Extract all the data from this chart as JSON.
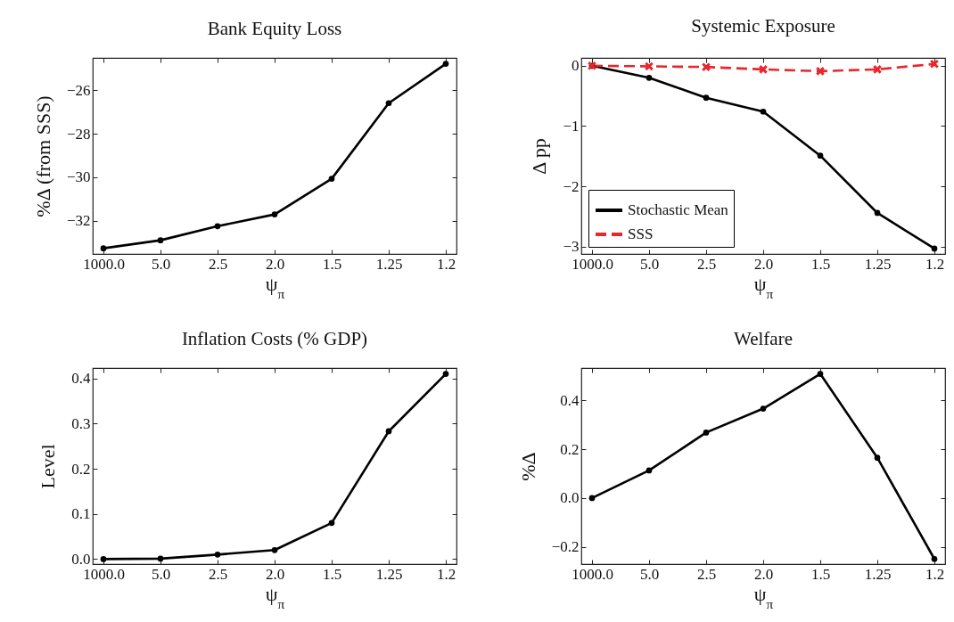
{
  "chart_data": [
    {
      "type": "line",
      "title": "Bank Equity Loss",
      "xlabel": "ψ$_{π}$",
      "ylabel": "%Δ (from SSS)",
      "categories": [
        "1000.0",
        "5.0",
        "2.5",
        "2.0",
        "1.5",
        "1.25",
        "1.2"
      ],
      "ylim": [
        -33.53,
        -24.51
      ],
      "yticks": [
        -32,
        -30,
        -28,
        -26
      ],
      "marker": "circle",
      "line_style": "solid",
      "series": [
        {
          "color": "#000000",
          "values": [
            -33.27,
            -32.9,
            -32.25,
            -31.71,
            -30.07,
            -26.59,
            -24.78
          ]
        }
      ]
    },
    {
      "type": "line",
      "title": "Systemic Exposure",
      "xlabel": "ψ$_{π}$",
      "ylabel": "Δ pp",
      "categories": [
        "1000.0",
        "5.0",
        "2.5",
        "2.0",
        "1.5",
        "1.25",
        "1.2"
      ],
      "ylim": [
        -3.12,
        0.13
      ],
      "yticks": [
        -3,
        -2,
        -1,
        0
      ],
      "legend": "bottom left",
      "series": [
        {
          "name": "Stochastic Mean",
          "color": "#000000",
          "marker": "circle",
          "line_style": "solid",
          "values": [
            0,
            -0.2,
            -0.53,
            -0.76,
            -1.49,
            -2.44,
            -3.03
          ]
        },
        {
          "name": "SSS",
          "color": "#e8262b",
          "marker": "cross",
          "line_style": "dashed",
          "values": [
            0,
            -0.01,
            -0.02,
            -0.06,
            -0.09,
            -0.06,
            0.03
          ]
        }
      ]
    },
    {
      "type": "line",
      "title": "Inflation Costs (% GDP)",
      "xlabel": "ψ$_{π}$",
      "ylabel": "Level",
      "categories": [
        "1000.0",
        "5.0",
        "2.5",
        "2.0",
        "1.5",
        "1.25",
        "1.2"
      ],
      "ylim": [
        -0.011,
        0.423
      ],
      "yticks": [
        {
          "value": 0,
          "label": "0.0"
        },
        0.1,
        0.2,
        0.3,
        0.4
      ],
      "marker": "circle",
      "line_style": "solid",
      "series": [
        {
          "color": "#000000",
          "values": [
            0,
            0.001,
            0.01,
            0.02,
            0.08,
            0.283,
            0.41
          ]
        }
      ]
    },
    {
      "type": "line",
      "title": "Welfare",
      "xlabel": "ψ$_{π}$",
      "ylabel": "%Δ",
      "categories": [
        "1000.0",
        "5.0",
        "2.5",
        "2.0",
        "1.5",
        "1.25",
        "1.2"
      ],
      "ylim": [
        -0.27,
        0.532
      ],
      "yticks": [
        -0.2,
        {
          "value": 0,
          "label": "0.0"
        },
        0.2,
        0.4
      ],
      "marker": "circle",
      "line_style": "solid",
      "series": [
        {
          "color": "#000000",
          "values": [
            0,
            0.113,
            0.268,
            0.366,
            0.508,
            0.165,
            -0.249
          ]
        }
      ]
    }
  ]
}
